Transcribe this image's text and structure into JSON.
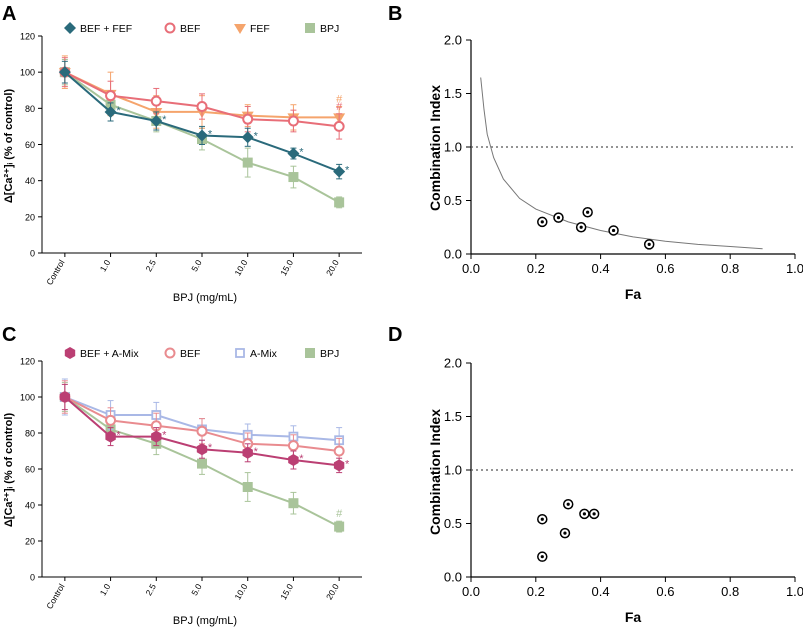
{
  "colors": {
    "teal": "#2a6a7b",
    "bef": "#e86e78",
    "fef": "#f5a46c",
    "bpj": "#a9c49a",
    "amix_fill": "#bb3f73",
    "amix_line": "#bb3f73",
    "amix_bpj": "#a9c49a",
    "amix_bef": "#e98b8f",
    "amix_amix": "#a9b8e6",
    "axis": "#000000",
    "ref": "#555555"
  },
  "chart_data": [
    {
      "panel": "A",
      "type": "line",
      "xlabel": "BPJ (mg/mL)",
      "ylabel": "Δ[Ca²⁺]ᵢ (% of control)",
      "ylim": [
        0,
        120
      ],
      "yticks": [
        "0",
        "20",
        "40",
        "60",
        "80",
        "100",
        "120"
      ],
      "categories": [
        "Control",
        "1.0",
        "2.5",
        "5.0",
        "10.0",
        "15.0",
        "20.0"
      ],
      "series": [
        {
          "name": "BPJ",
          "marker": "square",
          "color": "#a9c49a",
          "values": [
            100,
            82,
            73,
            63,
            50,
            42,
            28
          ],
          "err": [
            7,
            6,
            6,
            6,
            8,
            6,
            3
          ],
          "annotations": [
            "",
            "",
            "",
            "",
            "",
            "",
            ""
          ]
        },
        {
          "name": "FEF",
          "marker": "triangle",
          "color": "#f5a46c",
          "values": [
            100,
            88,
            78,
            78,
            76,
            75,
            75
          ],
          "err": [
            9,
            12,
            9,
            9,
            6,
            7,
            6
          ],
          "annotations": [
            "",
            "",
            "",
            "",
            "",
            "",
            "#"
          ]
        },
        {
          "name": "BEF",
          "marker": "circle",
          "color": "#e86e78",
          "values": [
            100,
            87,
            84,
            81,
            74,
            73,
            70
          ],
          "err": [
            8,
            8,
            7,
            7,
            7,
            6,
            7
          ],
          "annotations": [
            "",
            "",
            "",
            "",
            "",
            "",
            "#"
          ]
        },
        {
          "name": "BEF + FEF",
          "marker": "diamond",
          "color": "#2a6a7b",
          "values": [
            100,
            78,
            73,
            65,
            64,
            55,
            45
          ],
          "err": [
            6,
            5,
            5,
            5,
            5,
            3,
            4
          ],
          "annotations": [
            "",
            "*",
            "*",
            "*",
            "*",
            "*",
            "*"
          ]
        }
      ],
      "legend": [
        "BEF + FEF",
        "BEF",
        "FEF",
        "BPJ"
      ]
    },
    {
      "panel": "B",
      "type": "scatter",
      "xlabel": "Fa",
      "ylabel": "Combination Index",
      "xlim": [
        0,
        1.0
      ],
      "ylim": [
        0,
        2.0
      ],
      "xticks": [
        "0.0",
        "0.2",
        "0.4",
        "0.6",
        "0.8",
        "1.0"
      ],
      "yticks": [
        "0.0",
        "0.5",
        "1.0",
        "1.5",
        "2.0"
      ],
      "reference_line": 1.0,
      "points": [
        [
          0.22,
          0.3
        ],
        [
          0.27,
          0.34
        ],
        [
          0.34,
          0.25
        ],
        [
          0.36,
          0.39
        ],
        [
          0.44,
          0.22
        ],
        [
          0.55,
          0.09
        ]
      ],
      "curve": [
        [
          0.03,
          1.65
        ],
        [
          0.04,
          1.35
        ],
        [
          0.05,
          1.12
        ],
        [
          0.07,
          0.9
        ],
        [
          0.1,
          0.7
        ],
        [
          0.15,
          0.52
        ],
        [
          0.2,
          0.42
        ],
        [
          0.3,
          0.3
        ],
        [
          0.4,
          0.22
        ],
        [
          0.5,
          0.16
        ],
        [
          0.6,
          0.12
        ],
        [
          0.7,
          0.09
        ],
        [
          0.8,
          0.07
        ],
        [
          0.9,
          0.05
        ]
      ]
    },
    {
      "panel": "C",
      "type": "line",
      "xlabel": "BPJ (mg/mL)",
      "ylabel": "Δ[Ca²⁺]ᵢ (% of control)",
      "ylim": [
        0,
        120
      ],
      "yticks": [
        "0",
        "20",
        "40",
        "60",
        "80",
        "100",
        "120"
      ],
      "categories": [
        "Control",
        "1.0",
        "2.5",
        "5.0",
        "10.0",
        "15.0",
        "20.0"
      ],
      "series": [
        {
          "name": "BPJ",
          "marker": "square",
          "color": "#a9c49a",
          "values": [
            100,
            82,
            74,
            63,
            50,
            41,
            28
          ],
          "err": [
            8,
            6,
            6,
            6,
            8,
            6,
            3
          ],
          "annotations": [
            "",
            "",
            "",
            "",
            "",
            "",
            "#"
          ]
        },
        {
          "name": "A-Mix",
          "marker": "square-open",
          "color": "#a9b8e6",
          "values": [
            100,
            90,
            90,
            82,
            79,
            78,
            76
          ],
          "err": [
            10,
            8,
            7,
            6,
            6,
            6,
            7
          ],
          "annotations": [
            "",
            "",
            "",
            "",
            "",
            "",
            ""
          ]
        },
        {
          "name": "BEF",
          "marker": "circle",
          "color": "#e98b8f",
          "values": [
            100,
            87,
            84,
            81,
            74,
            73,
            70
          ],
          "err": [
            9,
            7,
            7,
            7,
            6,
            6,
            7
          ],
          "annotations": [
            "",
            "",
            "",
            "",
            "",
            "",
            ""
          ]
        },
        {
          "name": "BEF + A-Mix",
          "marker": "hexagon",
          "color": "#bb3f73",
          "values": [
            100,
            78,
            78,
            71,
            69,
            65,
            62
          ],
          "err": [
            7,
            5,
            5,
            5,
            5,
            5,
            4
          ],
          "annotations": [
            "",
            "*",
            "*",
            "*",
            "*",
            "*",
            "*"
          ]
        }
      ],
      "legend": [
        "BEF + A-Mix",
        "BEF",
        "A-Mix",
        "BPJ"
      ]
    },
    {
      "panel": "D",
      "type": "scatter",
      "xlabel": "Fa",
      "ylabel": "Combination Index",
      "xlim": [
        0,
        1.0
      ],
      "ylim": [
        0,
        2.0
      ],
      "xticks": [
        "0.0",
        "0.2",
        "0.4",
        "0.6",
        "0.8",
        "1.0"
      ],
      "yticks": [
        "0.0",
        "0.5",
        "1.0",
        "1.5",
        "2.0"
      ],
      "reference_line": 1.0,
      "points": [
        [
          0.22,
          0.54
        ],
        [
          0.22,
          0.19
        ],
        [
          0.29,
          0.41
        ],
        [
          0.3,
          0.68
        ],
        [
          0.35,
          0.59
        ],
        [
          0.38,
          0.59
        ]
      ]
    }
  ]
}
